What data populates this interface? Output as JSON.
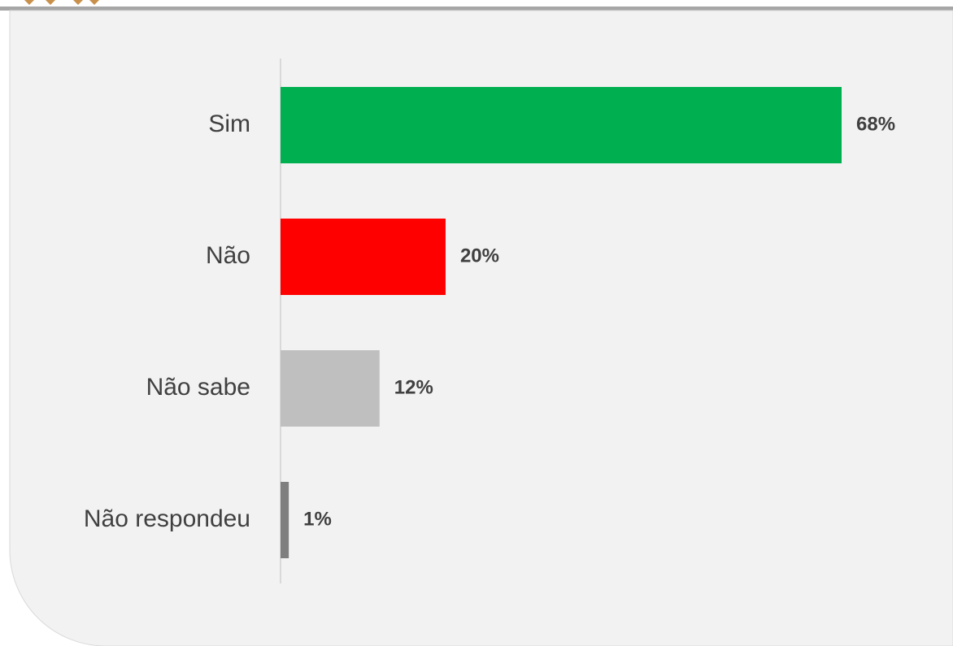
{
  "chart_data": {
    "type": "barh",
    "categories": [
      "Sim",
      "Não",
      "Não sabe",
      "Não respondeu"
    ],
    "values": [
      68,
      20,
      12,
      1
    ],
    "value_labels": [
      "68%",
      "20%",
      "12%",
      "1%"
    ],
    "colors": [
      "#00b050",
      "#ff0000",
      "#bfbfbf",
      "#7f7f7f"
    ]
  }
}
